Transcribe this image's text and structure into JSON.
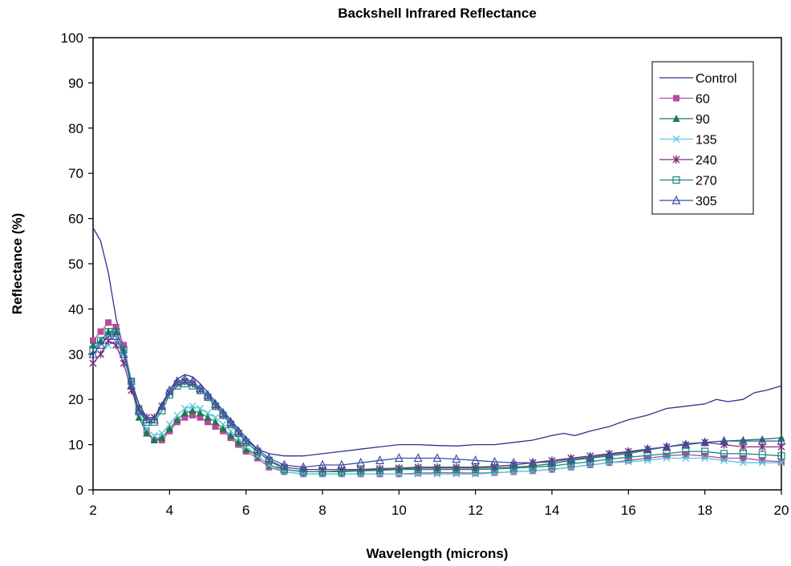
{
  "chart_data": {
    "type": "line",
    "title": "Backshell Infrared Reflectance",
    "xlabel": "Wavelength (microns)",
    "ylabel": "Reflectance (%)",
    "xlim": [
      2,
      20
    ],
    "ylim": [
      0,
      100
    ],
    "x_ticks": [
      "2",
      "4",
      "6",
      "8",
      "10",
      "12",
      "14",
      "16",
      "18",
      "20"
    ],
    "y_ticks": [
      "0",
      "10",
      "20",
      "30",
      "40",
      "50",
      "60",
      "70",
      "80",
      "90",
      "100"
    ],
    "grid": false,
    "legend_position": "top-right",
    "series": [
      {
        "name": "Control",
        "color": "#2e3192",
        "marker": "none",
        "x": [
          2,
          2.2,
          2.4,
          2.6,
          2.8,
          3,
          3.2,
          3.4,
          3.6,
          3.8,
          4,
          4.2,
          4.4,
          4.6,
          4.8,
          5,
          5.2,
          5.4,
          5.6,
          5.8,
          6,
          6.3,
          6.6,
          7,
          7.5,
          8,
          8.5,
          9,
          9.5,
          10,
          10.5,
          11,
          11.5,
          12,
          12.5,
          13,
          13.5,
          14,
          14.3,
          14.6,
          15,
          15.5,
          16,
          16.5,
          17,
          17.5,
          18,
          18.3,
          18.6,
          19,
          19.3,
          19.6,
          20
        ],
        "y": [
          58,
          55,
          48,
          38,
          31,
          24,
          19,
          16,
          16,
          19,
          22,
          24.5,
          25.5,
          25,
          23.5,
          21.5,
          19.5,
          17.5,
          15.5,
          13.5,
          11.5,
          9,
          8,
          7.5,
          7.5,
          8,
          8.5,
          9,
          9.5,
          10,
          10,
          9.8,
          9.7,
          10,
          10,
          10.5,
          11,
          12,
          12.5,
          12,
          13,
          14,
          15.5,
          16.5,
          18,
          18.5,
          19,
          20,
          19.5,
          20,
          21.5,
          22,
          23
        ]
      },
      {
        "name": "60",
        "color": "#b64aa0",
        "marker": "square",
        "x": [
          2,
          2.2,
          2.4,
          2.6,
          2.8,
          3,
          3.2,
          3.4,
          3.6,
          3.8,
          4,
          4.2,
          4.4,
          4.6,
          4.8,
          5,
          5.2,
          5.4,
          5.6,
          5.8,
          6,
          6.3,
          6.6,
          7,
          7.5,
          8,
          8.5,
          9,
          9.5,
          10,
          10.5,
          11,
          11.5,
          12,
          12.5,
          13,
          13.5,
          14,
          14.5,
          15,
          15.5,
          16,
          16.5,
          17,
          17.5,
          18,
          18.5,
          19,
          19.5,
          20
        ],
        "y": [
          33,
          35,
          37,
          36,
          32,
          24,
          17,
          13,
          11,
          11,
          13,
          15,
          16,
          16.5,
          16,
          15,
          14,
          13,
          11.5,
          10,
          8.5,
          7,
          5,
          4,
          3.5,
          3.5,
          3.5,
          3.5,
          3.5,
          3.5,
          3.7,
          3.8,
          3.8,
          3.7,
          3.8,
          4,
          4.2,
          4.5,
          5,
          5.5,
          6,
          6.5,
          7,
          7.5,
          7.8,
          7.5,
          7,
          7,
          6.5,
          6.2
        ]
      },
      {
        "name": "90",
        "color": "#1e7a4f",
        "marker": "triangle",
        "x": [
          2,
          2.2,
          2.4,
          2.6,
          2.8,
          3,
          3.2,
          3.4,
          3.6,
          3.8,
          4,
          4.2,
          4.4,
          4.6,
          4.8,
          5,
          5.2,
          5.4,
          5.6,
          5.8,
          6,
          6.3,
          6.6,
          7,
          7.5,
          8,
          8.5,
          9,
          9.5,
          10,
          10.5,
          11,
          11.5,
          12,
          12.5,
          13,
          13.5,
          14,
          14.5,
          15,
          15.5,
          16,
          16.5,
          17,
          17.5,
          18,
          18.5,
          19,
          19.5,
          20
        ],
        "y": [
          32,
          33,
          35,
          35,
          31,
          23,
          16,
          12.5,
          11,
          11.5,
          13.5,
          15.5,
          17,
          17.5,
          17,
          16,
          15,
          13.5,
          12,
          10.5,
          9,
          7.5,
          5.5,
          4.5,
          4,
          4,
          4.2,
          4.3,
          4.5,
          4.6,
          4.8,
          4.8,
          4.8,
          4.8,
          4.9,
          5,
          5.3,
          5.8,
          6.5,
          7,
          7.5,
          8,
          8.8,
          9.5,
          10.2,
          10.5,
          10.8,
          11,
          11.2,
          11.5
        ]
      },
      {
        "name": "135",
        "color": "#5bc8dd",
        "marker": "x",
        "x": [
          2,
          2.2,
          2.4,
          2.6,
          2.8,
          3,
          3.2,
          3.4,
          3.6,
          3.8,
          4,
          4.2,
          4.4,
          4.6,
          4.8,
          5,
          5.2,
          5.4,
          5.6,
          5.8,
          6,
          6.3,
          6.6,
          7,
          7.5,
          8,
          8.5,
          9,
          9.5,
          10,
          10.5,
          11,
          11.5,
          12,
          12.5,
          13,
          13.5,
          14,
          14.5,
          15,
          15.5,
          16,
          16.5,
          17,
          17.5,
          18,
          18.5,
          19,
          19.5,
          20
        ],
        "y": [
          28,
          30,
          32,
          33,
          30,
          24,
          17,
          13.5,
          12,
          12.5,
          14.5,
          16.5,
          18,
          18.5,
          18,
          17,
          16,
          14.5,
          13,
          11.5,
          9.5,
          7.5,
          5.5,
          4,
          3.5,
          3.5,
          3.5,
          3.5,
          3.5,
          3.5,
          3.5,
          3.5,
          3.5,
          3.5,
          3.7,
          4,
          4.2,
          4.5,
          5,
          5.5,
          6,
          6.2,
          6.5,
          7,
          7,
          7,
          6.5,
          6,
          6,
          6
        ]
      },
      {
        "name": "240",
        "color": "#7b2d7a",
        "marker": "star",
        "x": [
          2,
          2.2,
          2.4,
          2.6,
          2.8,
          3,
          3.2,
          3.4,
          3.6,
          3.8,
          4,
          4.2,
          4.4,
          4.6,
          4.8,
          5,
          5.2,
          5.4,
          5.6,
          5.8,
          6,
          6.3,
          6.6,
          7,
          7.5,
          8,
          8.5,
          9,
          9.5,
          10,
          10.5,
          11,
          11.5,
          12,
          12.5,
          13,
          13.5,
          14,
          14.5,
          15,
          15.5,
          16,
          16.5,
          17,
          17.5,
          18,
          18.5,
          19,
          19.5,
          20
        ],
        "y": [
          28,
          30,
          33,
          32,
          28,
          22,
          18,
          16,
          16,
          18.5,
          21.5,
          23.5,
          24,
          23.5,
          22,
          20.5,
          18.5,
          16.5,
          14.5,
          12.5,
          10.5,
          8.5,
          6.5,
          5,
          4.5,
          4.5,
          4.5,
          4.5,
          4.7,
          4.8,
          5,
          5,
          5,
          5,
          5.2,
          5.5,
          6,
          6.5,
          7,
          7.5,
          8,
          8.5,
          9,
          9.5,
          10,
          10.5,
          10,
          9.5,
          9.5,
          9.5
        ]
      },
      {
        "name": "270",
        "color": "#17857d",
        "marker": "square-open",
        "x": [
          2,
          2.2,
          2.4,
          2.6,
          2.8,
          3,
          3.2,
          3.4,
          3.6,
          3.8,
          4,
          4.2,
          4.4,
          4.6,
          4.8,
          5,
          5.2,
          5.4,
          5.6,
          5.8,
          6,
          6.3,
          6.6,
          7,
          7.5,
          8,
          8.5,
          9,
          9.5,
          10,
          10.5,
          11,
          11.5,
          12,
          12.5,
          13,
          13.5,
          14,
          14.5,
          15,
          15.5,
          16,
          16.5,
          17,
          17.5,
          18,
          18.5,
          19,
          19.5,
          20
        ],
        "y": [
          31,
          33,
          35,
          35,
          31,
          24,
          17.5,
          15,
          15,
          17.5,
          21,
          23,
          23.5,
          23,
          22,
          20.5,
          18.5,
          16.5,
          14.5,
          12.5,
          10.5,
          8.5,
          6.5,
          4.5,
          4,
          4,
          4,
          4.2,
          4.3,
          4.5,
          4.5,
          4.5,
          4.5,
          4.5,
          4.6,
          4.8,
          5,
          5.3,
          5.8,
          6.2,
          6.8,
          7.2,
          7.6,
          8,
          8.5,
          8.5,
          8,
          8,
          7.8,
          7.5
        ]
      },
      {
        "name": "305",
        "color": "#3a4fa3",
        "marker": "triangle-open",
        "x": [
          2,
          2.2,
          2.4,
          2.6,
          2.8,
          3,
          3.2,
          3.4,
          3.6,
          3.8,
          4,
          4.2,
          4.4,
          4.6,
          4.8,
          5,
          5.2,
          5.4,
          5.6,
          5.8,
          6,
          6.3,
          6.6,
          7,
          7.5,
          8,
          8.5,
          9,
          9.5,
          10,
          10.5,
          11,
          11.5,
          12,
          12.5,
          13,
          13.5,
          14,
          14.5,
          15,
          15.5,
          16,
          16.5,
          17,
          17.5,
          18,
          18.5,
          19,
          19.5,
          20
        ],
        "y": [
          30,
          32,
          34,
          34,
          30,
          23,
          17.5,
          15.5,
          15.5,
          18.5,
          22,
          24,
          24.5,
          24,
          22.5,
          21,
          19,
          17,
          15,
          13,
          11,
          9,
          7,
          5.5,
          5,
          5.5,
          5.5,
          6,
          6.5,
          7,
          7,
          7,
          6.8,
          6.5,
          6.2,
          6,
          6,
          6.2,
          6.8,
          7.2,
          7.8,
          8.3,
          9,
          9.5,
          10,
          10.5,
          10.8,
          10.8,
          10.8,
          10.8
        ]
      }
    ]
  }
}
